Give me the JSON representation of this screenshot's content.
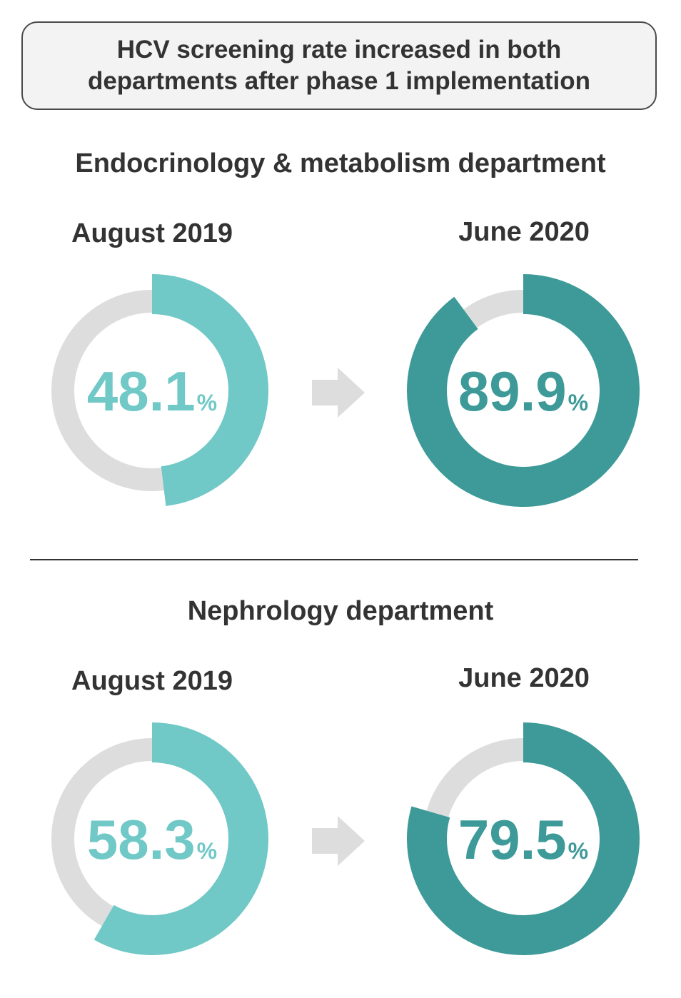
{
  "title": {
    "line1": "HCV screening rate increased in both",
    "line2": "departments after phase 1 implementation"
  },
  "colors": {
    "before": "#70c8c7",
    "after": "#3d9a98",
    "track": "#dddddd",
    "arrow": "#dddddd"
  },
  "chart_data": [
    {
      "type": "pie",
      "title": "Endocrinology & metabolism department",
      "period_before": "August 2019",
      "period_after": "June 2020",
      "unit": "%",
      "before": {
        "value": 48.1,
        "label": "48.1"
      },
      "after": {
        "value": 89.9,
        "label": "89.9"
      }
    },
    {
      "type": "pie",
      "title": "Nephrology department",
      "period_before": "August 2019",
      "period_after": "June 2020",
      "unit": "%",
      "before": {
        "value": 58.3,
        "label": "58.3"
      },
      "after": {
        "value": 79.5,
        "label": "79.5"
      }
    }
  ]
}
